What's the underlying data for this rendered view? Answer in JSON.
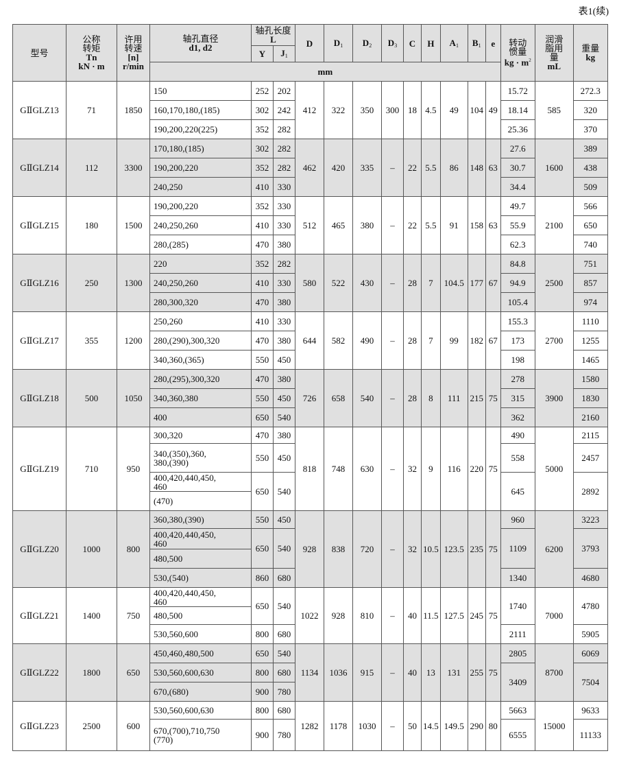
{
  "caption": "表1(续)",
  "header": {
    "model": "型号",
    "torque": [
      "公称",
      "转矩",
      "Tn",
      "kN · m"
    ],
    "speed": [
      "许用",
      "转速",
      "[n]",
      "r/min"
    ],
    "bore": [
      "轴孔直径",
      "d1, d2"
    ],
    "length": [
      "轴孔长度",
      "L"
    ],
    "Y": "Y",
    "J1": {
      "main": "J",
      "sub": "1"
    },
    "dims": [
      {
        "main": "D",
        "sub": ""
      },
      {
        "main": "D",
        "sub": "1"
      },
      {
        "main": "D",
        "sub": "2"
      },
      {
        "main": "D",
        "sub": "3"
      },
      {
        "main": "C",
        "sub": ""
      },
      {
        "main": "H",
        "sub": ""
      },
      {
        "main": "A",
        "sub": "1"
      },
      {
        "main": "B",
        "sub": "1"
      },
      {
        "main": "e",
        "sub": ""
      }
    ],
    "inertia": [
      "转动",
      "惯量",
      "kg · m",
      "2"
    ],
    "grease": [
      "润滑",
      "脂用",
      "量",
      "mL"
    ],
    "weight": [
      "重量",
      "kg"
    ],
    "unit_mm": "mm"
  },
  "rows": [
    {
      "model": "GⅡGLZ13",
      "torque": "71",
      "speed": "1850",
      "bores": [
        "150",
        "160,170,180,(185)",
        "190,200,220(225)"
      ],
      "L": [
        [
          "252",
          "202",
          1
        ],
        [
          "302",
          "242",
          1
        ],
        [
          "352",
          "282",
          1
        ]
      ],
      "dims": [
        "412",
        "322",
        "350",
        "300",
        "18",
        "4.5",
        "49",
        "104",
        "49"
      ],
      "inertia": [
        [
          "15.72",
          1
        ],
        [
          "18.14",
          1
        ],
        [
          "25.36",
          1
        ]
      ],
      "grease": "585",
      "weight": [
        [
          "272.3",
          1
        ],
        [
          "320",
          1
        ],
        [
          "370",
          1
        ]
      ]
    },
    {
      "model": "GⅡGLZ14",
      "torque": "112",
      "speed": "3300",
      "bores": [
        "170,180,(185)",
        "190,200,220",
        "240,250"
      ],
      "L": [
        [
          "302",
          "282",
          1
        ],
        [
          "352",
          "282",
          1
        ],
        [
          "410",
          "330",
          1
        ]
      ],
      "dims": [
        "462",
        "420",
        "335",
        "–",
        "22",
        "5.5",
        "86",
        "148",
        "63"
      ],
      "inertia": [
        [
          "27.6",
          1
        ],
        [
          "30.7",
          1
        ],
        [
          "34.4",
          1
        ]
      ],
      "grease": "1600",
      "weight": [
        [
          "389",
          1
        ],
        [
          "438",
          1
        ],
        [
          "509",
          1
        ]
      ]
    },
    {
      "model": "GⅡGLZ15",
      "torque": "180",
      "speed": "1500",
      "bores": [
        "190,200,220",
        "240,250,260",
        "280,(285)"
      ],
      "L": [
        [
          "352",
          "330",
          1
        ],
        [
          "410",
          "330",
          1
        ],
        [
          "470",
          "380",
          1
        ]
      ],
      "dims": [
        "512",
        "465",
        "380",
        "–",
        "22",
        "5.5",
        "91",
        "158",
        "63"
      ],
      "inertia": [
        [
          "49.7",
          1
        ],
        [
          "55.9",
          1
        ],
        [
          "62.3",
          1
        ]
      ],
      "grease": "2100",
      "weight": [
        [
          "566",
          1
        ],
        [
          "650",
          1
        ],
        [
          "740",
          1
        ]
      ]
    },
    {
      "model": "GⅡGLZ16",
      "torque": "250",
      "speed": "1300",
      "bores": [
        "220",
        "240,250,260",
        "280,300,320"
      ],
      "L": [
        [
          "352",
          "282",
          1
        ],
        [
          "410",
          "330",
          1
        ],
        [
          "470",
          "380",
          1
        ]
      ],
      "dims": [
        "580",
        "522",
        "430",
        "–",
        "28",
        "7",
        "104.5",
        "177",
        "67"
      ],
      "inertia": [
        [
          "84.8",
          1
        ],
        [
          "94.9",
          1
        ],
        [
          "105.4",
          1
        ]
      ],
      "grease": "2500",
      "weight": [
        [
          "751",
          1
        ],
        [
          "857",
          1
        ],
        [
          "974",
          1
        ]
      ]
    },
    {
      "model": "GⅡGLZ17",
      "torque": "355",
      "speed": "1200",
      "bores": [
        "250,260",
        "280,(290),300,320",
        "340,360,(365)"
      ],
      "L": [
        [
          "410",
          "330",
          1
        ],
        [
          "470",
          "380",
          1
        ],
        [
          "550",
          "450",
          1
        ]
      ],
      "dims": [
        "644",
        "582",
        "490",
        "–",
        "28",
        "7",
        "99",
        "182",
        "67"
      ],
      "inertia": [
        [
          "155.3",
          1
        ],
        [
          "173",
          1
        ],
        [
          "198",
          1
        ]
      ],
      "grease": "2700",
      "weight": [
        [
          "1110",
          1
        ],
        [
          "1255",
          1
        ],
        [
          "1465",
          1
        ]
      ]
    },
    {
      "model": "GⅡGLZ18",
      "torque": "500",
      "speed": "1050",
      "bores": [
        "280,(295),300,320",
        "340,360,380",
        "400"
      ],
      "L": [
        [
          "470",
          "380",
          1
        ],
        [
          "550",
          "450",
          1
        ],
        [
          "650",
          "540",
          1
        ]
      ],
      "dims": [
        "726",
        "658",
        "540",
        "–",
        "28",
        "8",
        "111",
        "215",
        "75"
      ],
      "inertia": [
        [
          "278",
          1
        ],
        [
          "315",
          1
        ],
        [
          "362",
          1
        ]
      ],
      "grease": "3900",
      "weight": [
        [
          "1580",
          1
        ],
        [
          "1830",
          1
        ],
        [
          "2160",
          1
        ]
      ]
    },
    {
      "model": "GⅡGLZ19",
      "torque": "710",
      "speed": "950",
      "bores": [
        "300,320",
        "340,(350),360,\n380,(390)",
        "400,420,440,450,\n460",
        "(470)"
      ],
      "L": [
        [
          "470",
          "380",
          1
        ],
        [
          "550",
          "450",
          1
        ],
        [
          "650",
          "540",
          2
        ]
      ],
      "dims": [
        "818",
        "748",
        "630",
        "–",
        "32",
        "9",
        "116",
        "220",
        "75"
      ],
      "inertia": [
        [
          "490",
          1
        ],
        [
          "558",
          1
        ],
        [
          "645",
          2
        ]
      ],
      "grease": "5000",
      "weight": [
        [
          "2115",
          1
        ],
        [
          "2457",
          1
        ],
        [
          "2892",
          2
        ]
      ]
    },
    {
      "model": "GⅡGLZ20",
      "torque": "1000",
      "speed": "800",
      "bores": [
        "360,380,(390)",
        "400,420,440,450,\n460",
        "480,500",
        "530,(540)"
      ],
      "L": [
        [
          "550",
          "450",
          1
        ],
        [
          "650",
          "540",
          2
        ],
        [
          "860",
          "680",
          1
        ]
      ],
      "dims": [
        "928",
        "838",
        "720",
        "–",
        "32",
        "10.5",
        "123.5",
        "235",
        "75"
      ],
      "inertia": [
        [
          "960",
          1
        ],
        [
          "1109",
          2
        ],
        [
          "1340",
          1
        ]
      ],
      "grease": "6200",
      "weight": [
        [
          "3223",
          1
        ],
        [
          "3793",
          2
        ],
        [
          "4680",
          1
        ]
      ]
    },
    {
      "model": "GⅡGLZ21",
      "torque": "1400",
      "speed": "750",
      "bores": [
        "400,420,440,450,\n460",
        "480,500",
        "530,560,600"
      ],
      "L": [
        [
          "650",
          "540",
          2
        ],
        [
          "800",
          "680",
          1
        ]
      ],
      "dims": [
        "1022",
        "928",
        "810",
        "–",
        "40",
        "11.5",
        "127.5",
        "245",
        "75"
      ],
      "inertia": [
        [
          "1740",
          2
        ],
        [
          "2111",
          1
        ]
      ],
      "grease": "7000",
      "weight": [
        [
          "4780",
          2
        ],
        [
          "5905",
          1
        ]
      ]
    },
    {
      "model": "GⅡGLZ22",
      "torque": "1800",
      "speed": "650",
      "bores": [
        "450,460,480,500",
        "530,560,600,630",
        "670,(680)"
      ],
      "L": [
        [
          "650",
          "540",
          1
        ],
        [
          "800",
          "680",
          1
        ],
        [
          "900",
          "780",
          1
        ]
      ],
      "dims": [
        "1134",
        "1036",
        "915",
        "–",
        "40",
        "13",
        "131",
        "255",
        "75"
      ],
      "inertia": [
        [
          "2805",
          1
        ],
        [
          "3409",
          2
        ]
      ],
      "grease": "8700",
      "weight": [
        [
          "6069",
          1
        ],
        [
          "7504",
          2
        ]
      ]
    },
    {
      "model": "GⅡGLZ23",
      "torque": "2500",
      "speed": "600",
      "bores": [
        "530,560,600,630",
        "670,(700),710,750\n(770)"
      ],
      "L": [
        [
          "800",
          "680",
          1
        ],
        [
          "900",
          "780",
          1
        ]
      ],
      "dims": [
        "1282",
        "1178",
        "1030",
        "–",
        "50",
        "14.5",
        "149.5",
        "290",
        "80"
      ],
      "inertia": [
        [
          "5663",
          1
        ],
        [
          "6555",
          1
        ]
      ],
      "grease": "15000",
      "weight": [
        [
          "9633",
          1
        ],
        [
          "11133",
          1
        ]
      ]
    }
  ]
}
